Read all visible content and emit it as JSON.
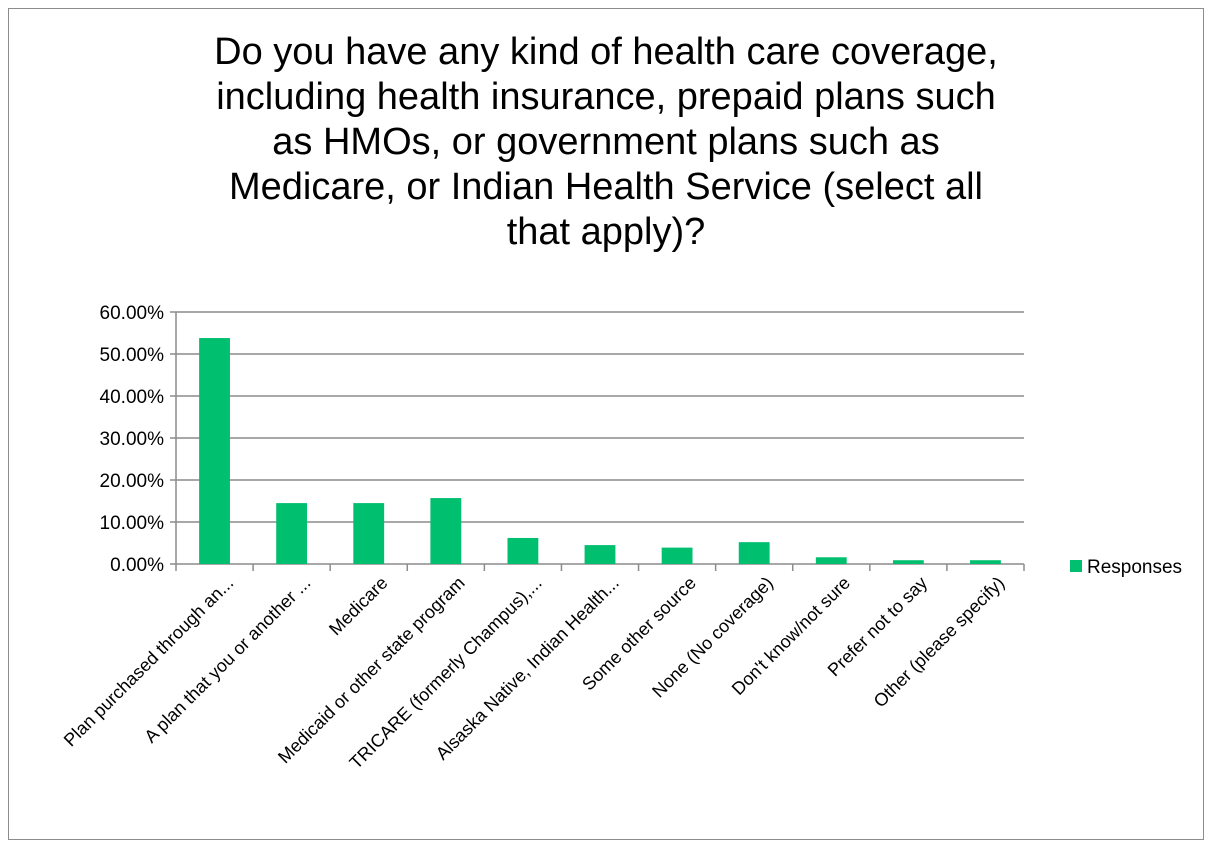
{
  "chart_data": {
    "type": "bar",
    "title_lines": [
      "Do you have any kind of health care coverage,",
      "including health insurance, prepaid plans such",
      "as HMOs, or government plans such as",
      "Medicare, or Indian Health Service (select all",
      "that apply)?"
    ],
    "categories": [
      "Plan purchased through an...",
      "A plan that you or another ...",
      "Medicare",
      "Medicaid or other state program",
      "TRICARE (formerly Champus),...",
      "Alsaska Native, Indian Health...",
      "Some other source",
      "None (No coverage)",
      "Don't know/not sure",
      "Prefer not to say",
      "Other (please specify)"
    ],
    "series": [
      {
        "name": "Responses",
        "color": "#00bf6f",
        "values": [
          53.8,
          14.5,
          14.5,
          15.7,
          6.2,
          4.5,
          3.9,
          5.2,
          1.6,
          0.9,
          0.9
        ]
      }
    ],
    "ylim": [
      0,
      60
    ],
    "yticks": [
      "0.00%",
      "10.00%",
      "20.00%",
      "30.00%",
      "40.00%",
      "50.00%",
      "60.00%"
    ],
    "ytick_values": [
      0,
      10,
      20,
      30,
      40,
      50,
      60
    ],
    "grid": true,
    "legend_position": "right"
  }
}
